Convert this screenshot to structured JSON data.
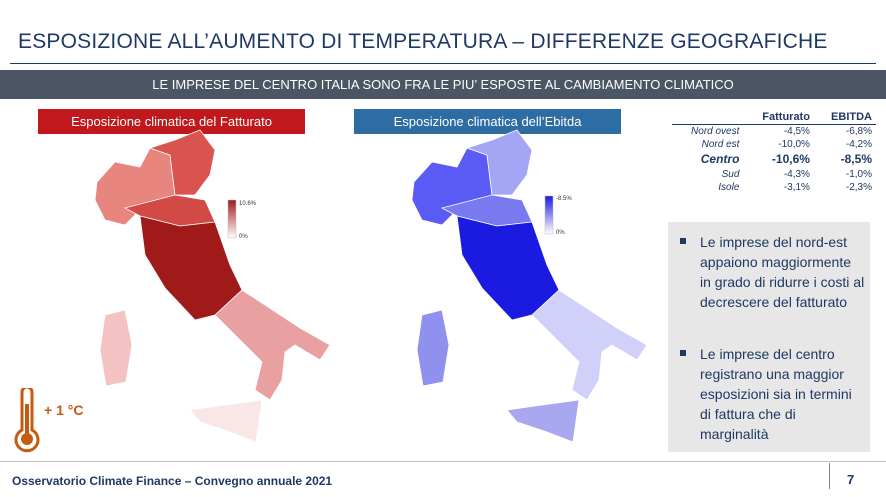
{
  "header": {
    "title": "ESPOSIZIONE ALL’AUMENTO DI TEMPERATURA – DIFFERENZE GEOGRAFICHE",
    "subtitle": "LE IMPRESE DEL CENTRO ITALIA SONO FRA LE PIU’ ESPOSTE AL CAMBIAMENTO CLIMATICO"
  },
  "panels": [
    {
      "title": "Esposizione climatica del Fatturato",
      "legend": {
        "max": "10.6%",
        "min": "0%"
      }
    },
    {
      "title": "Esposizione climatica dell’Ebitda",
      "legend": {
        "max": "-8.5%",
        "min": "0%"
      }
    }
  ],
  "table": {
    "columns": [
      "Fatturato",
      "EBITDA"
    ],
    "rows": [
      [
        "Nord ovest",
        "-4,5%",
        "-6,8%"
      ],
      [
        "Nord est",
        "-10,0%",
        "-4,2%"
      ],
      [
        "Centro",
        "-10,6%",
        "-8,5%"
      ],
      [
        "Sud",
        "-4,3%",
        "-1,0%"
      ],
      [
        "Isole",
        "-3,1%",
        "-2,3%"
      ]
    ]
  },
  "bullets": [
    "Le imprese del nord-est appaiono maggiormente in grado di ridurre i costi al decrescere del fatturato",
    "Le imprese del centro registrano una maggior esposizioni sia in termini di fattura che di marginalità"
  ],
  "icon_label": "+ 1 °C",
  "footer": {
    "text": "Osservatorio Climate Finance – Convegno annuale 2021",
    "page": "7"
  }
}
